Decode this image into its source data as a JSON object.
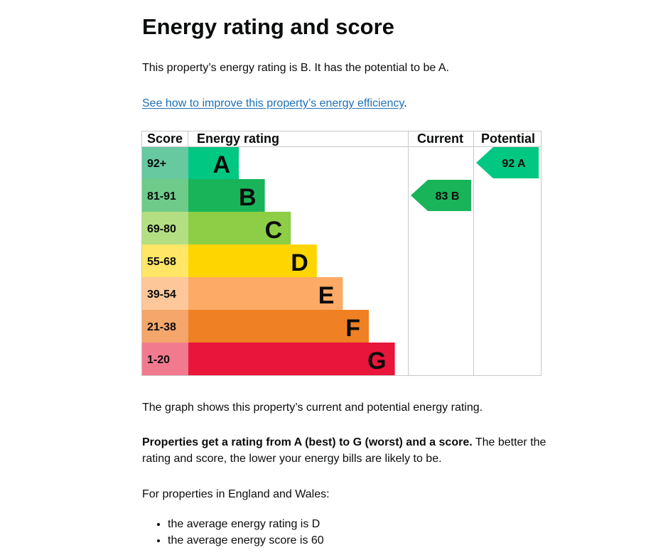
{
  "page": {
    "title": "Energy rating and score",
    "intro": "This property’s energy rating is B. It has the potential to be A.",
    "link_text": "See how to improve this property’s energy efficiency",
    "link_suffix": ".",
    "graph_description": "The graph shows this property’s current and potential energy rating.",
    "rating_bold": "Properties get a rating from A (best) to G (worst) and a score.",
    "rating_rest": " The better the rating and score, the lower your energy bills are likely to be.",
    "average_intro": "For properties in England and Wales:",
    "average_items": [
      "the average energy rating is D",
      "the average energy score is 60"
    ]
  },
  "chart_data": {
    "type": "bar",
    "headers": {
      "score": "Score",
      "rating": "Energy rating",
      "current": "Current",
      "potential": "Potential"
    },
    "bands": [
      {
        "letter": "A",
        "score_range": "92+",
        "band_color": "#00c781",
        "score_color": "#66c9a0"
      },
      {
        "letter": "B",
        "score_range": "81-91",
        "band_color": "#19b459",
        "score_color": "#6fcb8a"
      },
      {
        "letter": "C",
        "score_range": "69-80",
        "band_color": "#8dce46",
        "score_color": "#b3de82"
      },
      {
        "letter": "D",
        "score_range": "55-68",
        "band_color": "#ffd500",
        "score_color": "#ffe666"
      },
      {
        "letter": "E",
        "score_range": "39-54",
        "band_color": "#fcaa65",
        "score_color": "#fdc79a"
      },
      {
        "letter": "F",
        "score_range": "21-38",
        "band_color": "#ef8023",
        "score_color": "#f4a66b"
      },
      {
        "letter": "G",
        "score_range": "1-20",
        "band_color": "#e9153b",
        "score_color": "#f27a8f"
      }
    ],
    "current": {
      "score": 83,
      "rating": "B",
      "label": "83  B",
      "color": "#19b459"
    },
    "potential": {
      "score": 92,
      "rating": "A",
      "label": "92  A",
      "color": "#00c781"
    }
  }
}
